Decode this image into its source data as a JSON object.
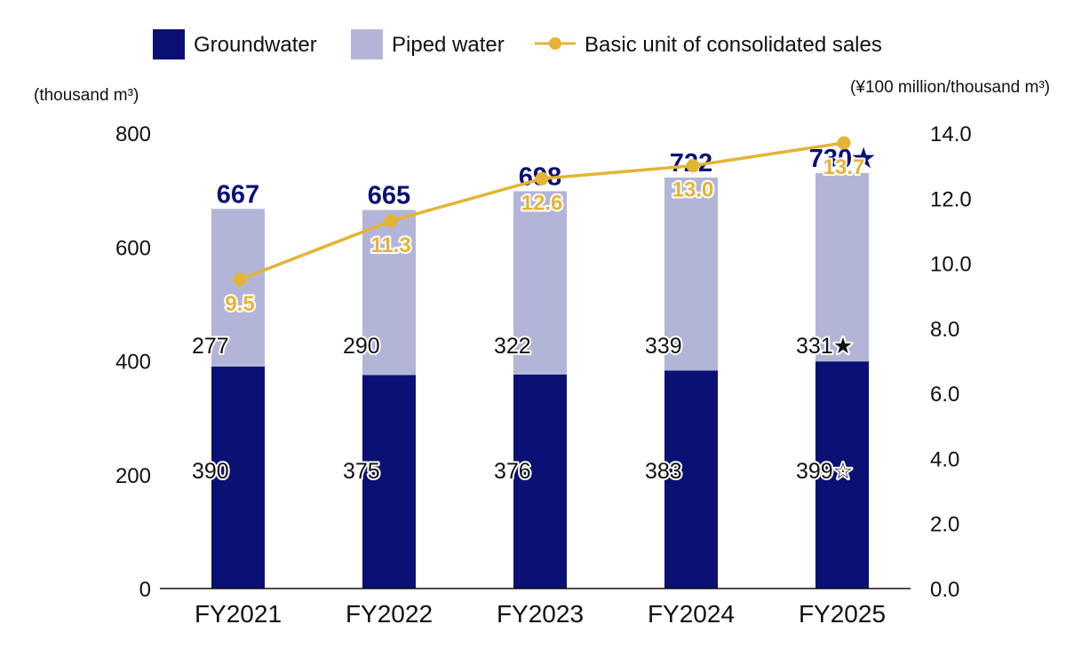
{
  "colors": {
    "groundwater": "#0b1074",
    "piped": "#b3b5d8",
    "line": "#e3b436",
    "total_text": "#0b1074",
    "axis": "#111111"
  },
  "legend": {
    "groundwater": "Groundwater",
    "piped": "Piped water",
    "line": "Basic unit of consolidated sales"
  },
  "chart_data": {
    "type": "bar",
    "stacked": true,
    "categories": [
      "FY2021",
      "FY2022",
      "FY2023",
      "FY2024",
      "FY2025"
    ],
    "series": [
      {
        "name": "Groundwater",
        "values": [
          390,
          375,
          376,
          383,
          399
        ],
        "labels": [
          "390",
          "375",
          "376",
          "383",
          "399☆"
        ]
      },
      {
        "name": "Piped water",
        "values": [
          277,
          290,
          322,
          339,
          331
        ],
        "labels": [
          "277",
          "290",
          "322",
          "339",
          "331★"
        ]
      }
    ],
    "totals": [
      667,
      665,
      698,
      722,
      730
    ],
    "total_labels": [
      "667",
      "665",
      "698",
      "722",
      "730★"
    ],
    "line_series": {
      "name": "Basic unit of consolidated sales",
      "values": [
        9.5,
        11.3,
        12.6,
        13.0,
        13.7
      ],
      "labels": [
        "9.5",
        "11.3",
        "12.6",
        "13.0",
        "13.7"
      ],
      "axis": "right"
    },
    "y_left": {
      "label": "(thousand m³)",
      "ylim": [
        0,
        800
      ],
      "ticks": [
        "0",
        "200",
        "400",
        "600",
        "800"
      ]
    },
    "y_right": {
      "label": "(¥100 million/thousand m³)",
      "ylim": [
        0,
        14
      ],
      "ticks": [
        "0.0",
        "2.0",
        "4.0",
        "6.0",
        "8.0",
        "10.0",
        "12.0",
        "14.0"
      ]
    },
    "legend_position": "top",
    "grid": false
  }
}
